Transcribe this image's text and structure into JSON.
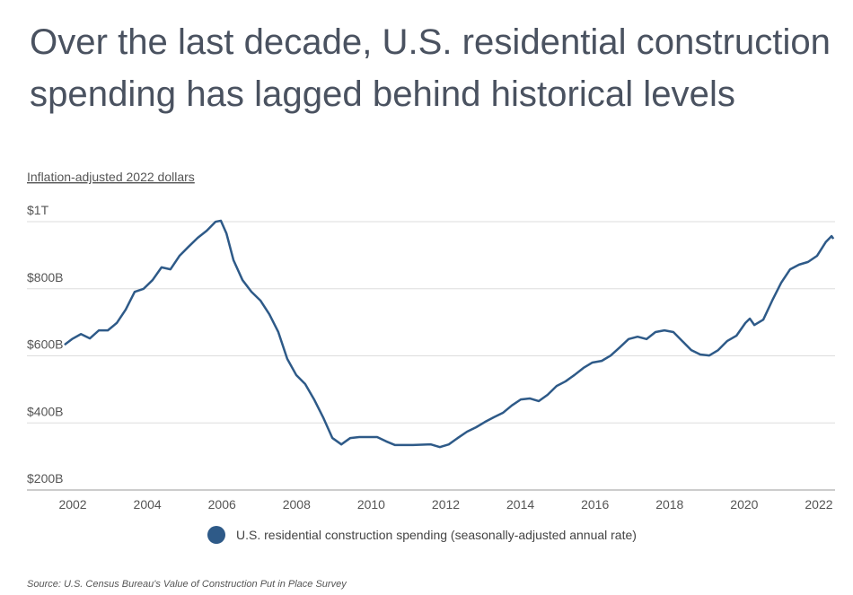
{
  "chart_data": {
    "type": "line",
    "title": [
      "Over the last decade, U.S. residential construction",
      "spending has lagged behind historical levels"
    ],
    "y_label": "Inflation-adjusted 2022 dollars",
    "source": "Source:  U.S. Census Bureau's Value of Construction Put in Place Survey",
    "x": [
      2001.78,
      2001.98,
      2002.22,
      2002.46,
      2002.7,
      2002.94,
      2003.18,
      2003.42,
      2003.66,
      2003.9,
      2004.14,
      2004.38,
      2004.62,
      2004.86,
      2005.1,
      2005.35,
      2005.59,
      2005.83,
      2005.97,
      2006.12,
      2006.31,
      2006.55,
      2006.79,
      2007.03,
      2007.27,
      2007.51,
      2007.75,
      2007.99,
      2008.23,
      2008.47,
      2008.71,
      2008.96,
      2009.2,
      2009.44,
      2009.68,
      2010.16,
      2010.4,
      2010.64,
      2011.12,
      2011.6,
      2011.84,
      2012.08,
      2012.32,
      2012.57,
      2012.81,
      2013.05,
      2013.29,
      2013.53,
      2013.77,
      2014.01,
      2014.25,
      2014.49,
      2014.73,
      2014.97,
      2015.21,
      2015.45,
      2015.69,
      2015.93,
      2016.18,
      2016.42,
      2016.66,
      2016.9,
      2017.14,
      2017.38,
      2017.62,
      2017.86,
      2018.1,
      2018.34,
      2018.58,
      2018.82,
      2019.06,
      2019.3,
      2019.54,
      2019.79,
      2020.03,
      2020.15,
      2020.27,
      2020.51,
      2020.75,
      2020.99,
      2021.23,
      2021.47,
      2021.71,
      2021.95,
      2022.19,
      2022.34,
      2022.39
    ],
    "series": [
      {
        "name": "U.S. residential construction spending (seasonally-adjusted annual rate)",
        "color": "#2e5a88",
        "values": [
          633,
          650,
          665,
          652,
          676,
          676,
          698,
          738,
          791,
          800,
          826,
          864,
          858,
          898,
          925,
          952,
          973,
          1000,
          1003,
          965,
          885,
          826,
          791,
          765,
          724,
          671,
          591,
          543,
          516,
          470,
          417,
          355,
          336,
          355,
          358,
          358,
          345,
          334,
          334,
          336,
          328,
          336,
          355,
          374,
          387,
          403,
          417,
          430,
          452,
          470,
          473,
          465,
          484,
          510,
          524,
          543,
          564,
          580,
          585,
          601,
          625,
          650,
          657,
          650,
          671,
          676,
          671,
          644,
          617,
          604,
          601,
          617,
          644,
          660,
          698,
          711,
          692,
          708,
          765,
          818,
          858,
          872,
          880,
          898,
          940,
          957,
          949
        ]
      }
    ],
    "xlim": [
      2001.73,
      2022.4
    ],
    "ylim": [
      200,
      1010
    ],
    "xticks": [
      2002,
      2004,
      2006,
      2008,
      2010,
      2012,
      2014,
      2016,
      2018,
      2020,
      2022
    ],
    "yticks": [
      {
        "value": 200,
        "label": "$200B"
      },
      {
        "value": 400,
        "label": "$400B"
      },
      {
        "value": 600,
        "label": "$600B"
      },
      {
        "value": 800,
        "label": "$800B"
      },
      {
        "value": 1000,
        "label": "$1T"
      }
    ],
    "grid": true
  }
}
